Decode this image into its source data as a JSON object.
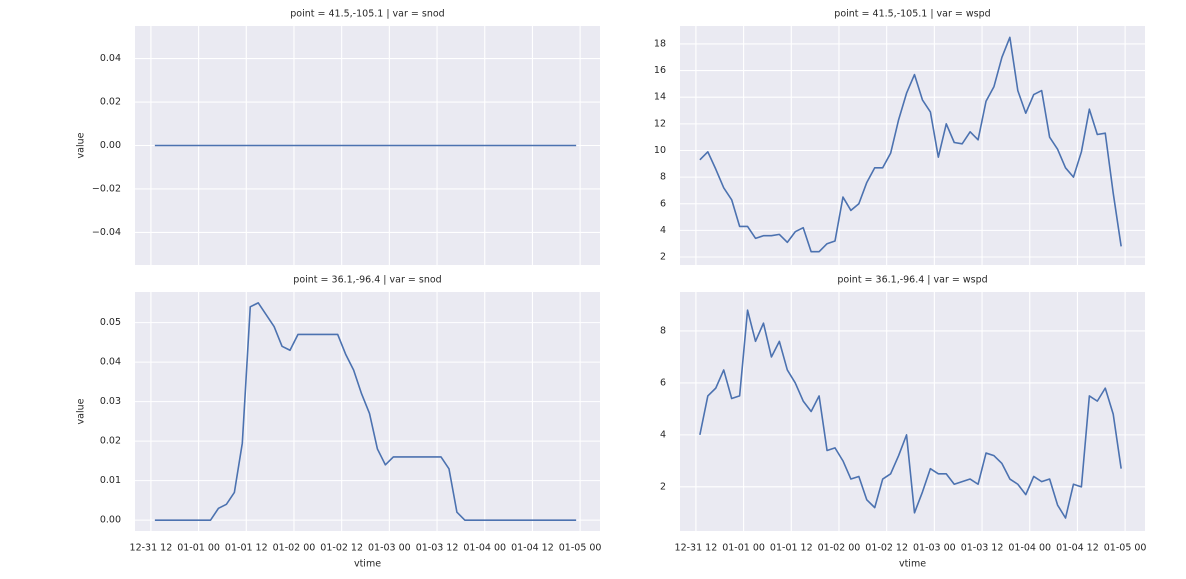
{
  "chart_data": [
    {
      "type": "line",
      "title": "point = 41.5,-105.1 | var = snod",
      "ylabel": "value",
      "color": "#4c72b0",
      "grid": true,
      "x": [
        "12-31 13",
        "12-31 15",
        "12-31 17",
        "12-31 19",
        "12-31 21",
        "12-31 23",
        "01-01 01",
        "01-01 03",
        "01-01 05",
        "01-01 07",
        "01-01 09",
        "01-01 11",
        "01-01 13",
        "01-01 15",
        "01-01 17",
        "01-01 19",
        "01-01 21",
        "01-01 23",
        "01-02 01",
        "01-02 03",
        "01-02 05",
        "01-02 07",
        "01-02 09",
        "01-02 11",
        "01-02 13",
        "01-02 15",
        "01-02 17",
        "01-02 19",
        "01-02 21",
        "01-02 23",
        "01-03 01",
        "01-03 03",
        "01-03 05",
        "01-03 07",
        "01-03 09",
        "01-03 11",
        "01-03 13",
        "01-03 15",
        "01-03 17",
        "01-03 19",
        "01-03 21",
        "01-03 23",
        "01-04 01",
        "01-04 03",
        "01-04 05",
        "01-04 07",
        "01-04 09",
        "01-04 11",
        "01-04 13",
        "01-04 15",
        "01-04 17",
        "01-04 19",
        "01-04 21",
        "01-04 23"
      ],
      "values": [
        0,
        0,
        0,
        0,
        0,
        0,
        0,
        0,
        0,
        0,
        0,
        0,
        0,
        0,
        0,
        0,
        0,
        0,
        0,
        0,
        0,
        0,
        0,
        0,
        0,
        0,
        0,
        0,
        0,
        0,
        0,
        0,
        0,
        0,
        0,
        0,
        0,
        0,
        0,
        0,
        0,
        0,
        0,
        0,
        0,
        0,
        0,
        0,
        0,
        0,
        0,
        0,
        0,
        0
      ],
      "xlim": [
        "12-31 08",
        "01-05 05"
      ],
      "ylim": [
        -0.055,
        0.055
      ],
      "yticks": [
        {
          "value": -0.04,
          "label": "−0.04"
        },
        {
          "value": -0.02,
          "label": "−0.02"
        },
        {
          "value": 0,
          "label": "0.00"
        },
        {
          "value": 0.02,
          "label": "0.02"
        },
        {
          "value": 0.04,
          "label": "0.04"
        }
      ]
    },
    {
      "type": "line",
      "title": "point = 41.5,-105.1 | var = wspd",
      "color": "#4c72b0",
      "grid": true,
      "x": [
        "12-31 13",
        "12-31 15",
        "12-31 17",
        "12-31 19",
        "12-31 21",
        "12-31 23",
        "01-01 01",
        "01-01 03",
        "01-01 05",
        "01-01 07",
        "01-01 09",
        "01-01 11",
        "01-01 13",
        "01-01 15",
        "01-01 17",
        "01-01 19",
        "01-01 21",
        "01-01 23",
        "01-02 01",
        "01-02 03",
        "01-02 05",
        "01-02 07",
        "01-02 09",
        "01-02 11",
        "01-02 13",
        "01-02 15",
        "01-02 17",
        "01-02 19",
        "01-02 21",
        "01-02 23",
        "01-03 01",
        "01-03 03",
        "01-03 05",
        "01-03 07",
        "01-03 09",
        "01-03 11",
        "01-03 13",
        "01-03 15",
        "01-03 17",
        "01-03 19",
        "01-03 21",
        "01-03 23",
        "01-04 01",
        "01-04 03",
        "01-04 05",
        "01-04 07",
        "01-04 09",
        "01-04 11",
        "01-04 13",
        "01-04 15",
        "01-04 17",
        "01-04 19",
        "01-04 21",
        "01-04 23"
      ],
      "values": [
        9.3,
        9.9,
        8.6,
        7.2,
        6.3,
        4.3,
        4.3,
        3.4,
        3.6,
        3.6,
        3.7,
        3.1,
        3.9,
        4.2,
        2.4,
        2.4,
        3.0,
        3.2,
        6.5,
        5.5,
        6.0,
        7.6,
        8.7,
        8.7,
        9.8,
        12.3,
        14.3,
        15.7,
        13.8,
        12.9,
        9.5,
        12.0,
        10.6,
        10.5,
        11.4,
        10.8,
        13.7,
        14.8,
        17.0,
        18.5,
        14.5,
        12.8,
        14.2,
        14.5,
        11.0,
        10.1,
        8.7,
        8.0,
        9.9,
        13.1,
        11.2,
        11.3,
        6.8,
        2.8
      ],
      "xlim": [
        "12-31 08",
        "01-05 05"
      ],
      "ylim": [
        1.4,
        19.35
      ],
      "yticks": [
        2,
        4,
        6,
        8,
        10,
        12,
        14,
        16,
        18
      ]
    },
    {
      "type": "line",
      "title": "point = 36.1,-96.4 | var = snod",
      "ylabel": "value",
      "xlabel": "vtime",
      "color": "#4c72b0",
      "grid": true,
      "x": [
        "12-31 13",
        "12-31 15",
        "12-31 17",
        "12-31 19",
        "12-31 21",
        "12-31 23",
        "01-01 01",
        "01-01 03",
        "01-01 05",
        "01-01 07",
        "01-01 09",
        "01-01 11",
        "01-01 13",
        "01-01 15",
        "01-01 17",
        "01-01 19",
        "01-01 21",
        "01-01 23",
        "01-02 01",
        "01-02 03",
        "01-02 05",
        "01-02 07",
        "01-02 09",
        "01-02 11",
        "01-02 13",
        "01-02 15",
        "01-02 17",
        "01-02 19",
        "01-02 21",
        "01-02 23",
        "01-03 01",
        "01-03 03",
        "01-03 05",
        "01-03 07",
        "01-03 09",
        "01-03 11",
        "01-03 13",
        "01-03 15",
        "01-03 17",
        "01-03 19",
        "01-03 21",
        "01-03 23",
        "01-04 01",
        "01-04 03",
        "01-04 05",
        "01-04 07",
        "01-04 09",
        "01-04 11",
        "01-04 13",
        "01-04 15",
        "01-04 17",
        "01-04 19",
        "01-04 21",
        "01-04 23"
      ],
      "values": [
        0,
        0,
        0,
        0,
        0,
        0,
        0,
        0,
        0.003,
        0.004,
        0.007,
        0.0195,
        0.054,
        0.055,
        0.052,
        0.049,
        0.044,
        0.043,
        0.047,
        0.047,
        0.047,
        0.047,
        0.047,
        0.047,
        0.042,
        0.038,
        0.032,
        0.027,
        0.018,
        0.014,
        0.016,
        0.016,
        0.016,
        0.016,
        0.016,
        0.016,
        0.016,
        0.013,
        0.002,
        0,
        0,
        0,
        0,
        0,
        0,
        0,
        0,
        0,
        0,
        0,
        0,
        0,
        0,
        0
      ],
      "xlim": [
        "12-31 08",
        "01-05 05"
      ],
      "ylim": [
        -0.00275,
        0.05775
      ],
      "xticks": [
        "12-31 12",
        "01-01 00",
        "01-01 12",
        "01-02 00",
        "01-02 12",
        "01-03 00",
        "01-03 12",
        "01-04 00",
        "01-04 12",
        "01-05 00"
      ],
      "yticks": [
        {
          "value": 0,
          "label": "0.00"
        },
        {
          "value": 0.01,
          "label": "0.01"
        },
        {
          "value": 0.02,
          "label": "0.02"
        },
        {
          "value": 0.03,
          "label": "0.03"
        },
        {
          "value": 0.04,
          "label": "0.04"
        },
        {
          "value": 0.05,
          "label": "0.05"
        }
      ]
    },
    {
      "type": "line",
      "title": "point = 36.1,-96.4 | var = wspd",
      "xlabel": "vtime",
      "color": "#4c72b0",
      "grid": true,
      "x": [
        "12-31 13",
        "12-31 15",
        "12-31 17",
        "12-31 19",
        "12-31 21",
        "12-31 23",
        "01-01 01",
        "01-01 03",
        "01-01 05",
        "01-01 07",
        "01-01 09",
        "01-01 11",
        "01-01 13",
        "01-01 15",
        "01-01 17",
        "01-01 19",
        "01-01 21",
        "01-01 23",
        "01-02 01",
        "01-02 03",
        "01-02 05",
        "01-02 07",
        "01-02 09",
        "01-02 11",
        "01-02 13",
        "01-02 15",
        "01-02 17",
        "01-02 19",
        "01-02 21",
        "01-02 23",
        "01-03 01",
        "01-03 03",
        "01-03 05",
        "01-03 07",
        "01-03 09",
        "01-03 11",
        "01-03 13",
        "01-03 15",
        "01-03 17",
        "01-03 19",
        "01-03 21",
        "01-03 23",
        "01-04 01",
        "01-04 03",
        "01-04 05",
        "01-04 07",
        "01-04 09",
        "01-04 11",
        "01-04 13",
        "01-04 15",
        "01-04 17",
        "01-04 19",
        "01-04 21",
        "01-04 23"
      ],
      "values": [
        4.0,
        5.5,
        5.8,
        6.5,
        5.4,
        5.5,
        8.8,
        7.6,
        8.3,
        7.0,
        7.6,
        6.5,
        6.0,
        5.3,
        4.9,
        5.5,
        3.4,
        3.5,
        3.0,
        2.3,
        2.4,
        1.5,
        1.2,
        2.3,
        2.5,
        3.2,
        4.0,
        1.0,
        1.8,
        2.7,
        2.5,
        2.5,
        2.1,
        2.2,
        2.3,
        2.1,
        3.3,
        3.2,
        2.9,
        2.3,
        2.1,
        1.7,
        2.4,
        2.2,
        2.3,
        1.3,
        0.8,
        2.1,
        2.0,
        5.5,
        5.3,
        5.8,
        4.8,
        2.7
      ],
      "xlim": [
        "12-31 08",
        "01-05 05"
      ],
      "ylim": [
        0.3,
        9.5
      ],
      "xticks": [
        "12-31 12",
        "01-01 00",
        "01-01 12",
        "01-02 00",
        "01-02 12",
        "01-03 00",
        "01-03 12",
        "01-04 00",
        "01-04 12",
        "01-05 00"
      ],
      "yticks": [
        2,
        4,
        6,
        8
      ]
    }
  ]
}
